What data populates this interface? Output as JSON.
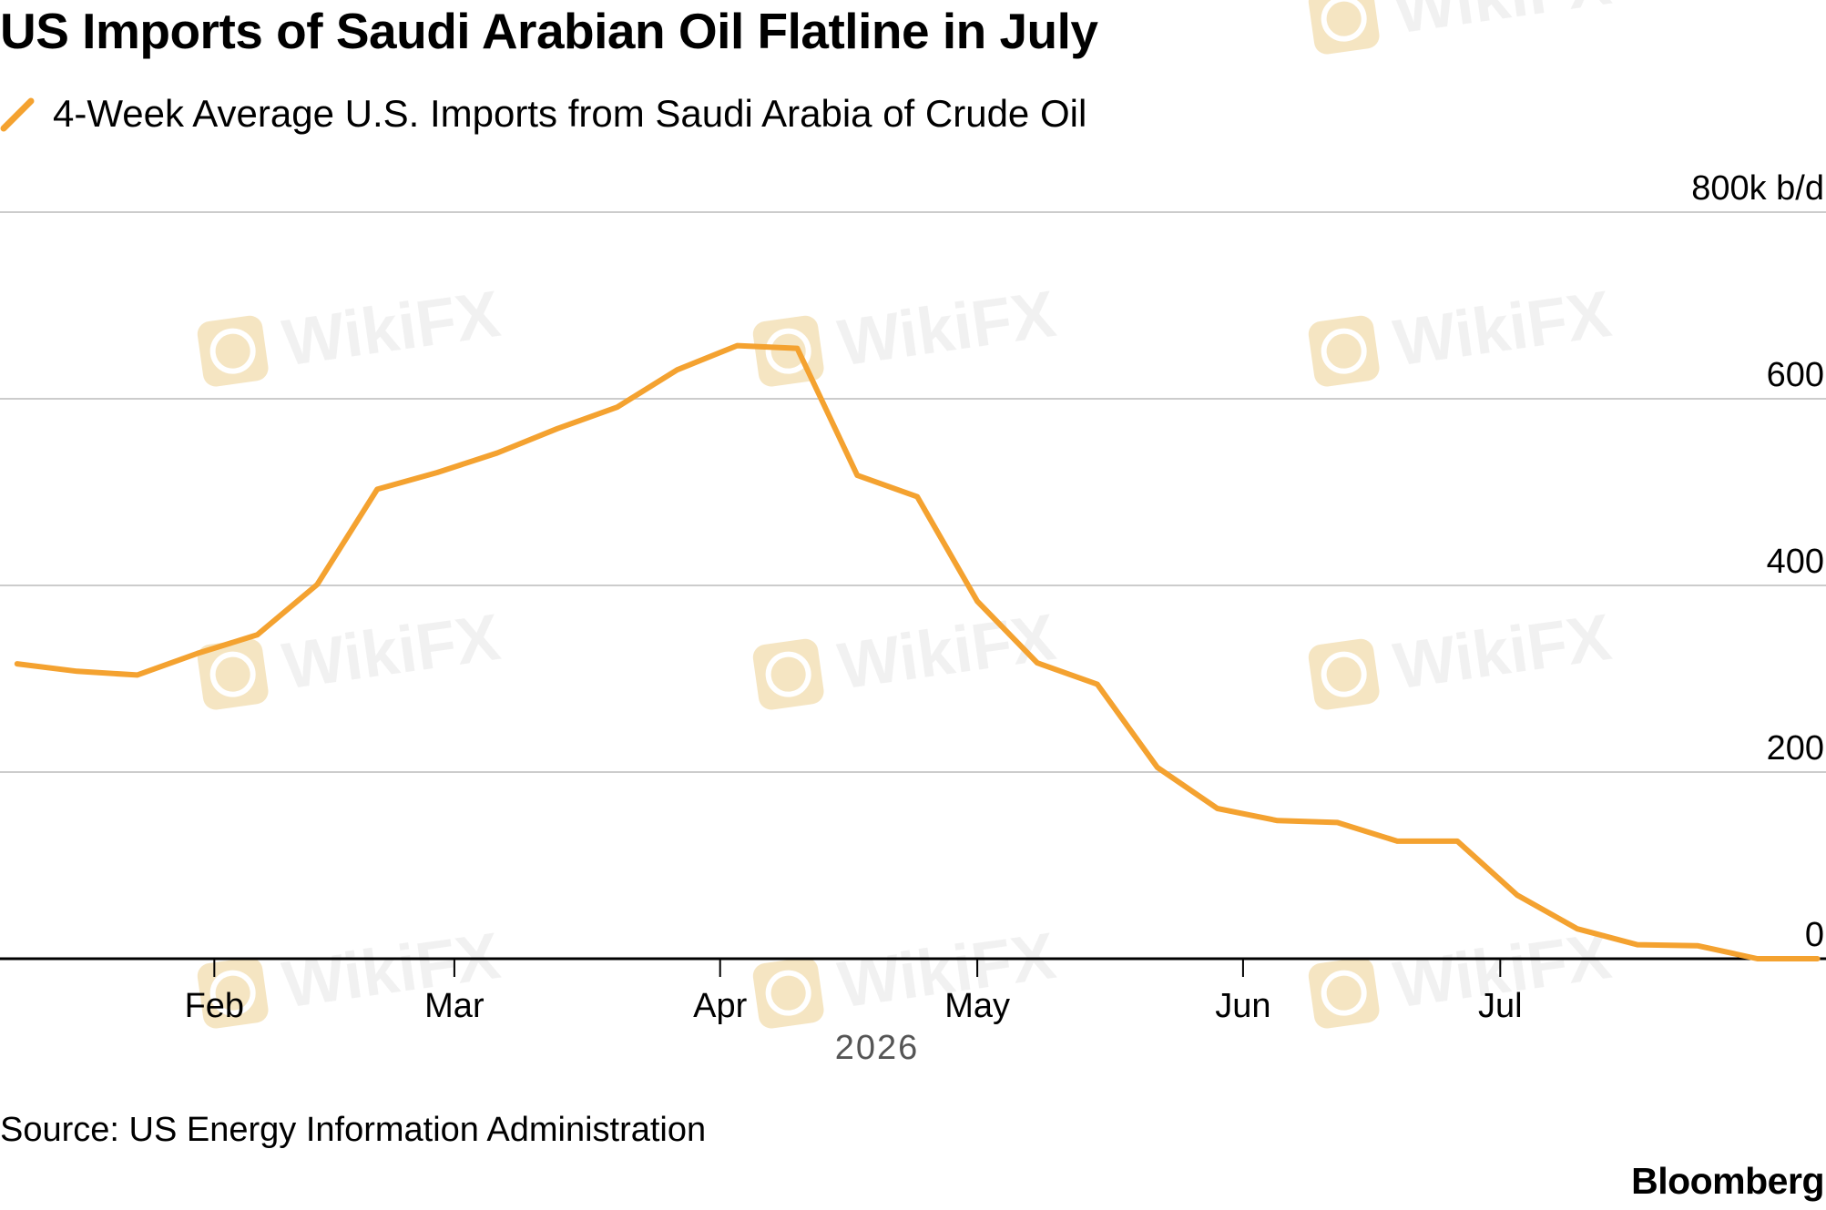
{
  "colors": {
    "line": "#F4A230",
    "grid": "#CCCCCC",
    "axis": "#000000",
    "watermark": "#E9C77A"
  },
  "header": {
    "title": "US Imports of Saudi Arabian Oil Flatline in July"
  },
  "footer": {
    "source": "Source: US Energy Information Administration",
    "brand": "Bloomberg"
  },
  "watermark": {
    "text": "WikiFX",
    "icon": "wikifx-logo-icon"
  },
  "chart_data": {
    "type": "line",
    "title": "US Imports of Saudi Arabian Oil Flatline in July",
    "xlabel": "2026",
    "ylabel": "",
    "y_unit": "k b/d",
    "ylim": [
      0,
      800
    ],
    "yticks": [
      {
        "value": 0,
        "label": "0"
      },
      {
        "value": 200,
        "label": "200"
      },
      {
        "value": 400,
        "label": "400"
      },
      {
        "value": 600,
        "label": "600"
      },
      {
        "value": 800,
        "label": "800k b/d"
      }
    ],
    "xlim": [
      "2026-01-07",
      "2026-08-08"
    ],
    "xticks": [
      {
        "date": "2026-02-01",
        "label": "Feb"
      },
      {
        "date": "2026-03-01",
        "label": "Mar"
      },
      {
        "date": "2026-04-01",
        "label": "Apr"
      },
      {
        "date": "2026-05-01",
        "label": "May"
      },
      {
        "date": "2026-06-01",
        "label": "Jun"
      },
      {
        "date": "2026-07-01",
        "label": "Jul"
      }
    ],
    "grid": true,
    "legend_position": "top-left",
    "series": [
      {
        "name": "4-Week Average U.S. Imports from Saudi Arabia of Crude Oil",
        "color": "#F4A230",
        "points": [
          {
            "date": "2026-01-09",
            "value": 316
          },
          {
            "date": "2026-01-16",
            "value": 308
          },
          {
            "date": "2026-01-23",
            "value": 304
          },
          {
            "date": "2026-01-30",
            "value": 327
          },
          {
            "date": "2026-02-06",
            "value": 347
          },
          {
            "date": "2026-02-13",
            "value": 401
          },
          {
            "date": "2026-02-20",
            "value": 503
          },
          {
            "date": "2026-02-27",
            "value": 521
          },
          {
            "date": "2026-03-06",
            "value": 542
          },
          {
            "date": "2026-03-13",
            "value": 568
          },
          {
            "date": "2026-03-20",
            "value": 591
          },
          {
            "date": "2026-03-27",
            "value": 631
          },
          {
            "date": "2026-04-03",
            "value": 657
          },
          {
            "date": "2026-04-10",
            "value": 654
          },
          {
            "date": "2026-04-17",
            "value": 518
          },
          {
            "date": "2026-04-24",
            "value": 495
          },
          {
            "date": "2026-05-01",
            "value": 383
          },
          {
            "date": "2026-05-08",
            "value": 317
          },
          {
            "date": "2026-05-15",
            "value": 294
          },
          {
            "date": "2026-05-22",
            "value": 205
          },
          {
            "date": "2026-05-29",
            "value": 161
          },
          {
            "date": "2026-06-05",
            "value": 148
          },
          {
            "date": "2026-06-12",
            "value": 146
          },
          {
            "date": "2026-06-19",
            "value": 126
          },
          {
            "date": "2026-06-26",
            "value": 126
          },
          {
            "date": "2026-07-03",
            "value": 68
          },
          {
            "date": "2026-07-10",
            "value": 32
          },
          {
            "date": "2026-07-17",
            "value": 15
          },
          {
            "date": "2026-07-24",
            "value": 14
          },
          {
            "date": "2026-07-31",
            "value": 0
          },
          {
            "date": "2026-08-07",
            "value": 0
          }
        ]
      }
    ]
  }
}
